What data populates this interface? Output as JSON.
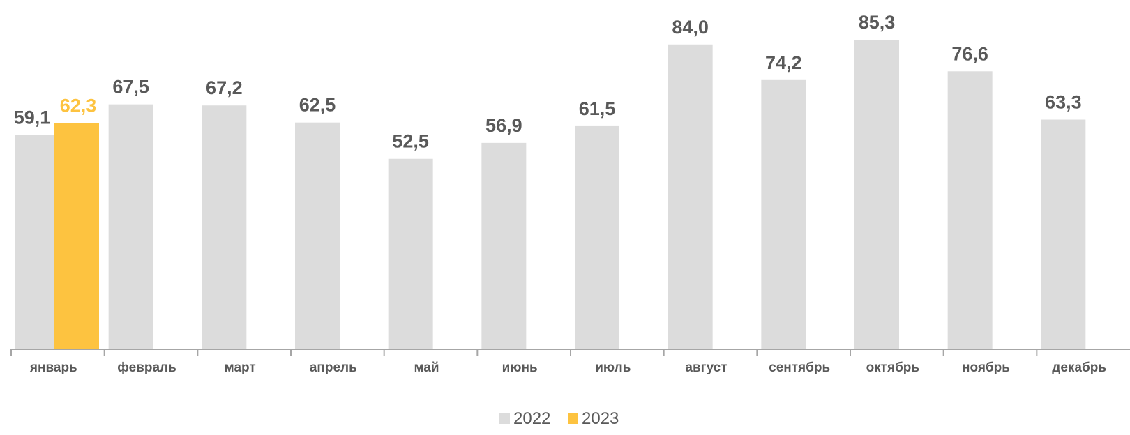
{
  "chart_data": {
    "type": "bar",
    "categories": [
      "январь",
      "февраль",
      "март",
      "апрель",
      "май",
      "июнь",
      "июль",
      "август",
      "сентябрь",
      "октябрь",
      "ноябрь",
      "декабрь"
    ],
    "series": [
      {
        "name": "2022",
        "color": "#DCDCDC",
        "label_color": "#595959",
        "values": [
          59.1,
          67.5,
          67.2,
          62.5,
          52.5,
          56.9,
          61.5,
          84.0,
          74.2,
          85.3,
          76.6,
          63.3
        ],
        "labels": [
          "59,1",
          "67,5",
          "67,2",
          "62,5",
          "52,5",
          "56,9",
          "61,5",
          "84,0",
          "74,2",
          "85,3",
          "76,6",
          "63,3"
        ]
      },
      {
        "name": "2023",
        "color": "#FDC340",
        "label_color": "#FDC340",
        "values": [
          62.3,
          null,
          null,
          null,
          null,
          null,
          null,
          null,
          null,
          null,
          null,
          null
        ],
        "labels": [
          "62,3",
          "",
          "",
          "",
          "",
          "",
          "",
          "",
          "",
          "",
          "",
          ""
        ]
      }
    ],
    "ylim": [
      0,
      95
    ],
    "grid": false,
    "legend": "bottom-center",
    "axis_color": "#A6A6A6"
  }
}
